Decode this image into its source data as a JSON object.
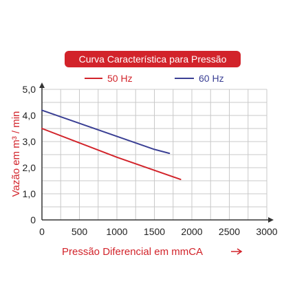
{
  "colors": {
    "accent_red": "#d2232a",
    "series_50": "#d2232a",
    "series_60": "#3a3f94",
    "grid": "#c8c8c8",
    "axis": "#333333"
  },
  "chart_data": {
    "type": "line",
    "title": "Curva Característica para Pressão",
    "xlabel": "Pressão Diferencial em mmCA",
    "ylabel": "Vazão em m³ / min",
    "xlim": [
      0,
      3000
    ],
    "ylim": [
      0,
      5
    ],
    "x_ticks": [
      0,
      500,
      1000,
      1500,
      2000,
      2500,
      3000
    ],
    "y_ticks": [
      0,
      1,
      2,
      3,
      4,
      5
    ],
    "x_tick_labels": [
      "0",
      "500",
      "1000",
      "1500",
      "2000",
      "2500",
      "3000"
    ],
    "y_tick_labels": [
      "0",
      "1,0",
      "2,0",
      "3,0",
      "4,0",
      "5,0"
    ],
    "grid": true,
    "grid_step_x": 250,
    "grid_step_y": 0.5,
    "legend_position": "top",
    "series": [
      {
        "name": "50 Hz",
        "color": "#d2232a",
        "x": [
          0,
          500,
          1000,
          1500,
          1850
        ],
        "y": [
          3.5,
          2.95,
          2.4,
          1.9,
          1.55
        ]
      },
      {
        "name": "60 Hz",
        "color": "#3a3f94",
        "x": [
          0,
          500,
          1000,
          1500,
          1700
        ],
        "y": [
          4.2,
          3.7,
          3.2,
          2.7,
          2.55
        ]
      }
    ]
  }
}
